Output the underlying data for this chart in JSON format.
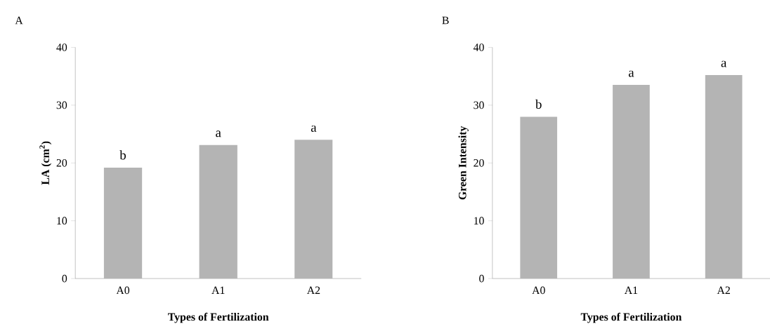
{
  "chart_data": [
    {
      "type": "bar",
      "title": "A",
      "xlabel": "Types of Fertilization",
      "ylabel": "LA (cm$^{2}$)",
      "categories": [
        "A0",
        "A1",
        "A2"
      ],
      "values": [
        19.2,
        23.1,
        24.0
      ],
      "color": "#b4b4b4",
      "ylim": [
        0,
        40
      ],
      "yticks": [
        0,
        10,
        20,
        30,
        40
      ],
      "grid": false,
      "annotations": [
        {
          "text": "b",
          "x": "A0",
          "y": 19.2
        },
        {
          "text": "a",
          "x": "A1",
          "y": 23.1
        },
        {
          "text": "a",
          "x": "A2",
          "y": 24.0
        }
      ]
    },
    {
      "type": "bar",
      "title": "B",
      "xlabel": "Types of Fertilization",
      "ylabel": "Green Intensity",
      "categories": [
        "A0",
        "A1",
        "A2"
      ],
      "values": [
        28.0,
        33.5,
        35.2
      ],
      "color": "#b4b4b4",
      "ylim": [
        0,
        40
      ],
      "yticks": [
        0,
        10,
        20,
        30,
        40
      ],
      "grid": false,
      "annotations": [
        {
          "text": "b",
          "x": "A0",
          "y": 28.0
        },
        {
          "text": "a",
          "x": "A1",
          "y": 33.5
        },
        {
          "text": "a",
          "x": "A2",
          "y": 35.2
        }
      ]
    }
  ]
}
